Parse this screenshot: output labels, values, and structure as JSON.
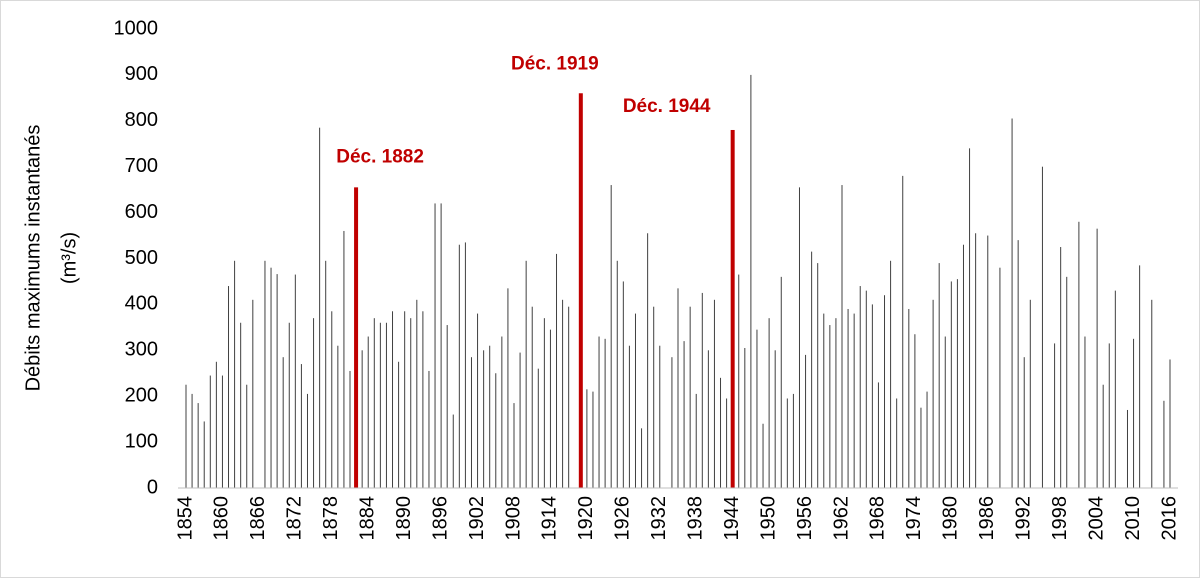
{
  "chart_data": {
    "type": "bar",
    "y_axis_label": [
      "Débits maximums instantanés",
      "(m³/s)"
    ],
    "categories": [
      "1854",
      null,
      null,
      null,
      null,
      null,
      "1860",
      null,
      null,
      null,
      null,
      null,
      "1866",
      null,
      null,
      null,
      null,
      null,
      "1872",
      null,
      null,
      null,
      null,
      null,
      "1878",
      null,
      null,
      null,
      null,
      null,
      "1884",
      null,
      null,
      null,
      null,
      null,
      "1890",
      null,
      null,
      null,
      null,
      null,
      "1896",
      null,
      null,
      null,
      null,
      null,
      "1902",
      null,
      null,
      null,
      null,
      null,
      "1908",
      null,
      null,
      null,
      null,
      null,
      "1914",
      null,
      null,
      null,
      null,
      null,
      "1920",
      null,
      null,
      null,
      null,
      null,
      "1926",
      null,
      null,
      null,
      null,
      null,
      "1932",
      null,
      null,
      null,
      null,
      null,
      "1938",
      null,
      null,
      null,
      null,
      null,
      "1944",
      null,
      null,
      null,
      null,
      null,
      "1950",
      null,
      null,
      null,
      null,
      null,
      "1956",
      null,
      null,
      null,
      null,
      null,
      "1962",
      null,
      null,
      null,
      null,
      null,
      "1968",
      null,
      null,
      null,
      null,
      null,
      "1974",
      null,
      null,
      null,
      null,
      null,
      "1980",
      null,
      null,
      null,
      null,
      null,
      "1986",
      null,
      null,
      null,
      null,
      null,
      "1992",
      null,
      null,
      null,
      null,
      null,
      "1998",
      null,
      null,
      null,
      null,
      null,
      "2004",
      null,
      null,
      null,
      null,
      null,
      "2010",
      null,
      null,
      null,
      null,
      null,
      "2016"
    ],
    "values": [
      225,
      205,
      185,
      145,
      245,
      275,
      245,
      440,
      495,
      360,
      225,
      410,
      null,
      495,
      480,
      466,
      285,
      360,
      465,
      270,
      205,
      370,
      785,
      495,
      385,
      310,
      560,
      255,
      655,
      300,
      330,
      370,
      360,
      360,
      385,
      275,
      385,
      370,
      410,
      385,
      255,
      620,
      620,
      355,
      160,
      530,
      535,
      285,
      380,
      300,
      310,
      250,
      330,
      435,
      185,
      295,
      495,
      395,
      260,
      370,
      345,
      510,
      410,
      395,
      null,
      860,
      215,
      210,
      330,
      325,
      660,
      495,
      450,
      310,
      380,
      130,
      555,
      395,
      310,
      null,
      285,
      435,
      320,
      395,
      205,
      425,
      300,
      410,
      240,
      195,
      780,
      465,
      305,
      900,
      345,
      140,
      370,
      300,
      460,
      195,
      205,
      655,
      290,
      515,
      490,
      380,
      355,
      370,
      660,
      390,
      380,
      440,
      430,
      400,
      230,
      420,
      495,
      195,
      680,
      390,
      335,
      175,
      210,
      410,
      490,
      330,
      450,
      455,
      530,
      740,
      555,
      null,
      550,
      null,
      480,
      null,
      805,
      540,
      285,
      410,
      null,
      700,
      null,
      315,
      525,
      460,
      null,
      580,
      330,
      null,
      565,
      225,
      315,
      430,
      null,
      170,
      325,
      485,
      null,
      410,
      null,
      190,
      280
    ],
    "color": "#404040",
    "highlight_color": "#c00000",
    "annotations": [
      {
        "text": "Déc. 1882",
        "index": 28
      },
      {
        "text": "Déc. 1919",
        "index": 65
      },
      {
        "text": "Déc. 1944",
        "index": 90
      }
    ],
    "ylim": [
      0,
      1000
    ],
    "yticks": [
      0,
      100,
      200,
      300,
      400,
      500,
      600,
      700,
      800,
      900,
      1000
    ],
    "grid": false
  }
}
